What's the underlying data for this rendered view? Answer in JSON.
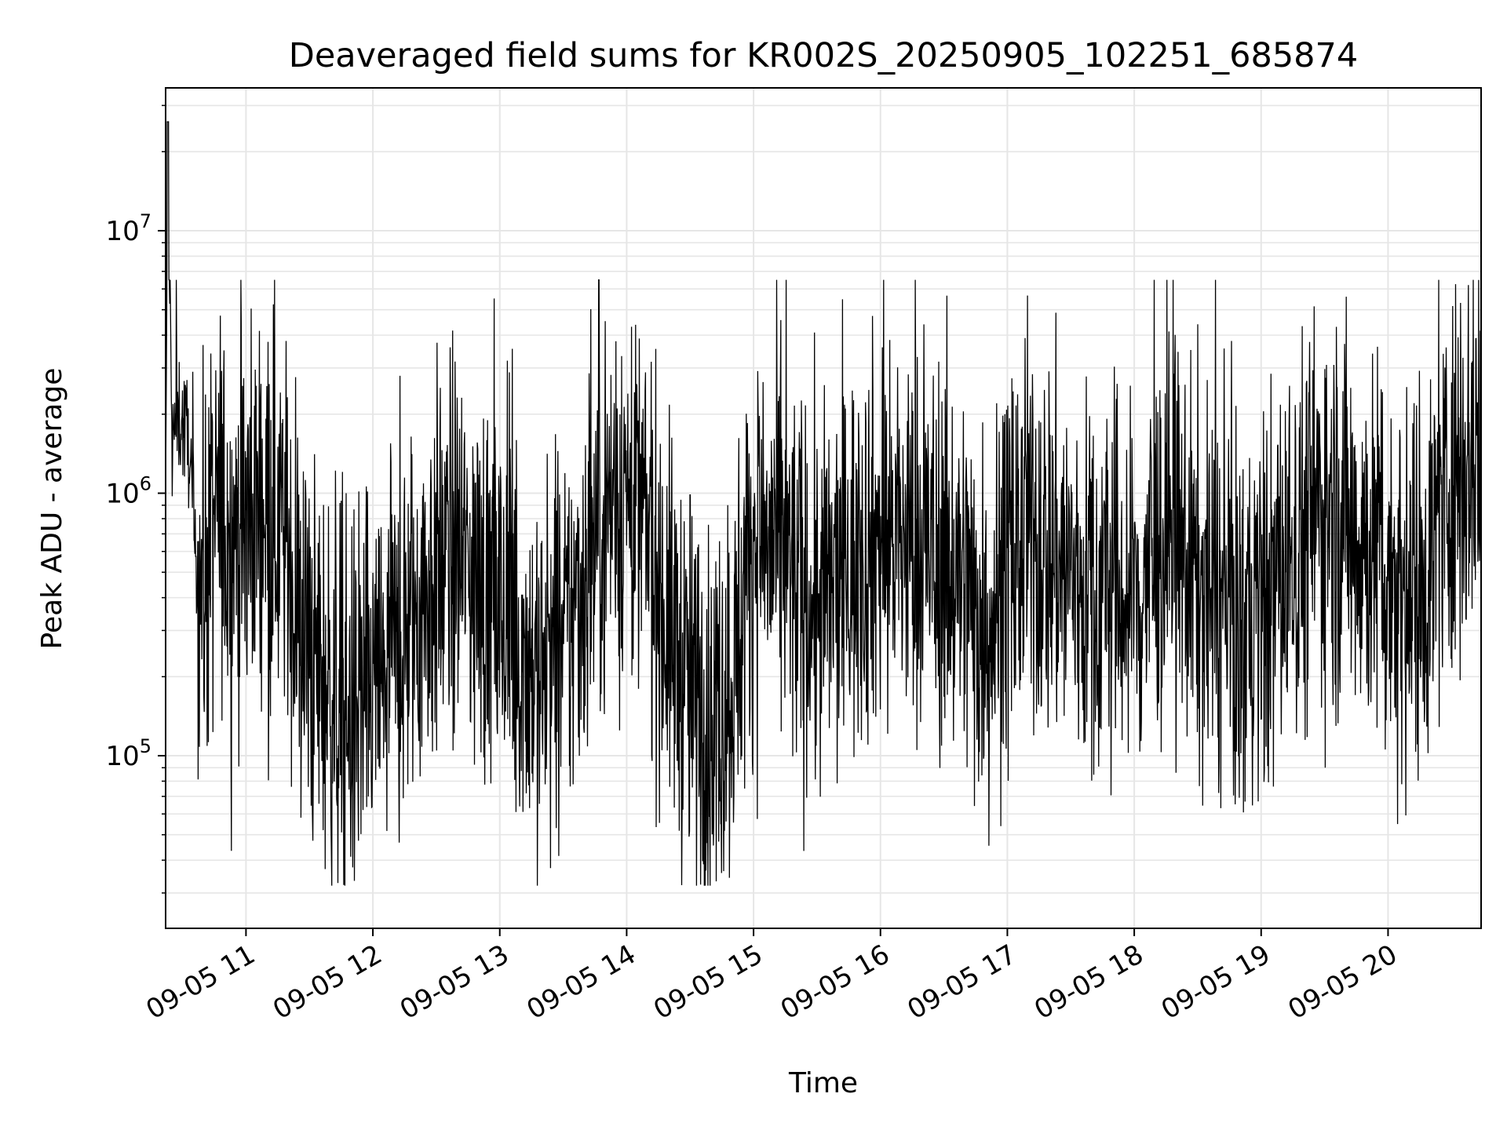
{
  "chart_data": {
    "type": "line",
    "title": "Deaveraged field sums for KR002S_20250905_102251_685874",
    "xlabel": "Time",
    "ylabel": "Peak ADU - average",
    "yscale": "log",
    "ylim": [
      22000,
      35000000
    ],
    "xlim": [
      "2025-09-05 10:22",
      "2025-09-05 20:44"
    ],
    "grid": true,
    "series_color": "#000000",
    "x_ticks": [
      "09-05 11",
      "09-05 12",
      "09-05 13",
      "09-05 14",
      "09-05 15",
      "09-05 16",
      "09-05 17",
      "09-05 18",
      "09-05 19",
      "09-05 20"
    ],
    "y_ticks": [
      {
        "base": "10",
        "exp": "5",
        "value": 100000
      },
      {
        "base": "10",
        "exp": "6",
        "value": 1000000
      },
      {
        "base": "10",
        "exp": "7",
        "value": 10000000
      }
    ],
    "series": [
      {
        "x": [
          "2025-09-05 10:22",
          "2025-09-05 10:23",
          "2025-09-05 10:25",
          "2025-09-05 10:28",
          "2025-09-05 10:33",
          "2025-09-05 10:36",
          "2025-09-05 10:40",
          "2025-09-05 10:44",
          "2025-09-05 10:48",
          "2025-09-05 10:52",
          "2025-09-05 10:55",
          "2025-09-05 10:58",
          "2025-09-05 11:05",
          "2025-09-05 11:10",
          "2025-09-05 11:18",
          "2025-09-05 11:25",
          "2025-09-05 11:30",
          "2025-09-05 11:38",
          "2025-09-05 11:45",
          "2025-09-05 11:52",
          "2025-09-05 11:58",
          "2025-09-05 12:05",
          "2025-09-05 12:12",
          "2025-09-05 12:20",
          "2025-09-05 12:30",
          "2025-09-05 12:40",
          "2025-09-05 12:50",
          "2025-09-05 13:00",
          "2025-09-05 13:10",
          "2025-09-05 13:20",
          "2025-09-05 13:30",
          "2025-09-05 13:40",
          "2025-09-05 13:50",
          "2025-09-05 14:00",
          "2025-09-05 14:10",
          "2025-09-05 14:20",
          "2025-09-05 14:30",
          "2025-09-05 14:40",
          "2025-09-05 14:50",
          "2025-09-05 15:00",
          "2025-09-05 15:10",
          "2025-09-05 15:20",
          "2025-09-05 15:30",
          "2025-09-05 15:40",
          "2025-09-05 15:50",
          "2025-09-05 16:00",
          "2025-09-05 16:10",
          "2025-09-05 16:20",
          "2025-09-05 16:30",
          "2025-09-05 16:40",
          "2025-09-05 16:50",
          "2025-09-05 17:00",
          "2025-09-05 17:10",
          "2025-09-05 17:20",
          "2025-09-05 17:30",
          "2025-09-05 17:40",
          "2025-09-05 17:50",
          "2025-09-05 18:00",
          "2025-09-05 18:10",
          "2025-09-05 18:20",
          "2025-09-05 18:30",
          "2025-09-05 18:40",
          "2025-09-05 18:50",
          "2025-09-05 19:00",
          "2025-09-05 19:10",
          "2025-09-05 19:20",
          "2025-09-05 19:30",
          "2025-09-05 19:40",
          "2025-09-05 19:50",
          "2025-09-05 20:00",
          "2025-09-05 20:10",
          "2025-09-05 20:20",
          "2025-09-05 20:30",
          "2025-09-05 20:44"
        ],
        "y": [
          700000,
          26000000,
          1500000,
          2000000,
          1600000,
          550000,
          450000,
          700000,
          900000,
          600000,
          800000,
          700000,
          900000,
          1000000,
          700000,
          300000,
          250000,
          180000,
          150000,
          140000,
          160000,
          200000,
          250000,
          350000,
          500000,
          600000,
          450000,
          350000,
          250000,
          200000,
          250000,
          500000,
          900000,
          1000000,
          700000,
          300000,
          180000,
          130000,
          200000,
          700000,
          600000,
          450000,
          350000,
          450000,
          600000,
          700000,
          650000,
          600000,
          550000,
          450000,
          300000,
          500000,
          700000,
          600000,
          500000,
          400000,
          450000,
          350000,
          600000,
          650000,
          450000,
          350000,
          300000,
          350000,
          500000,
          700000,
          900000,
          800000,
          650000,
          500000,
          400000,
          550000,
          1200000,
          1500000
        ]
      }
    ],
    "envelope": {
      "upper_peak_max": 6500000,
      "lower_trough_min": 32000
    }
  }
}
